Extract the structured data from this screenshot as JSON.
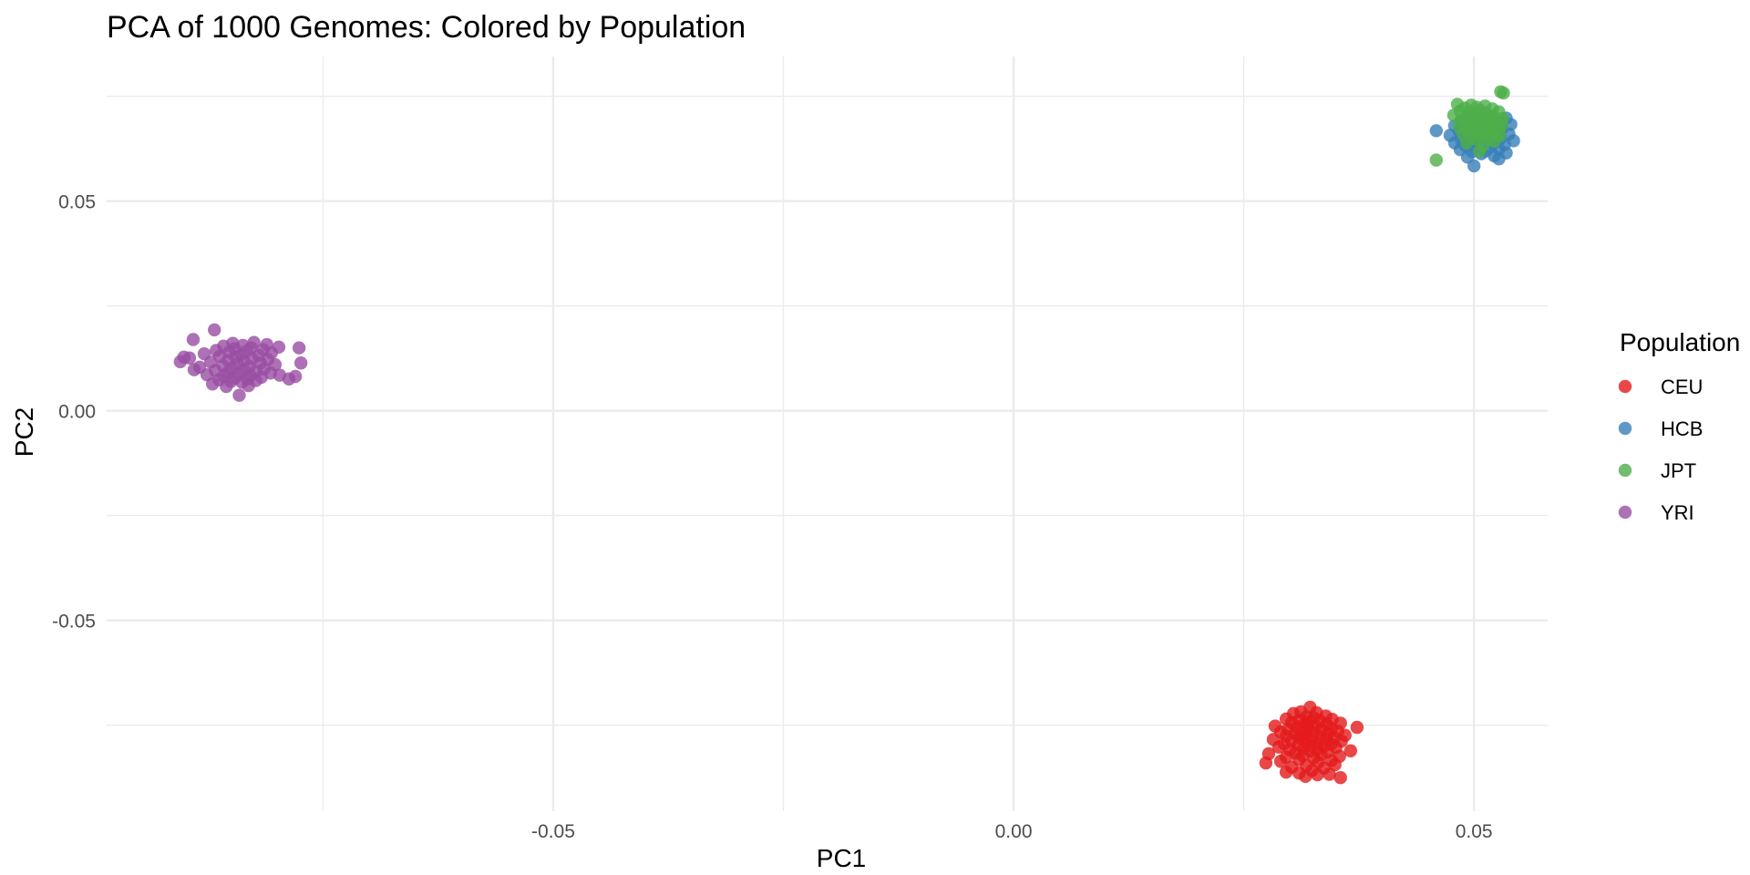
{
  "chart_data": {
    "type": "scatter",
    "title": "PCA of 1000 Genomes: Colored by Population",
    "xlabel": "PC1",
    "ylabel": "PC2",
    "xlim": [
      -0.0985,
      0.058
    ],
    "ylim": [
      -0.0955,
      0.0845
    ],
    "x_major_ticks": [
      -0.05,
      0.0,
      0.05
    ],
    "x_minor_ticks": [
      -0.075,
      -0.025,
      0.025
    ],
    "x_tick_labels": [
      "-0.05",
      "0.00",
      "0.05"
    ],
    "y_major_ticks": [
      -0.05,
      0.0,
      0.05
    ],
    "y_minor_ticks": [
      -0.075,
      -0.025,
      0.025,
      0.075
    ],
    "y_tick_labels": [
      "-0.05",
      "0.00",
      "0.05"
    ],
    "grid": true,
    "legend": {
      "title": "Population",
      "position": "right"
    },
    "series": [
      {
        "name": "CEU",
        "color": "#e41a1c",
        "points": [
          [
            0.0322,
            -0.0707
          ],
          [
            0.0312,
            -0.0718
          ],
          [
            0.0329,
            -0.072
          ],
          [
            0.0304,
            -0.0722
          ],
          [
            0.0339,
            -0.0728
          ],
          [
            0.0318,
            -0.073
          ],
          [
            0.0326,
            -0.0732
          ],
          [
            0.0296,
            -0.0735
          ],
          [
            0.0346,
            -0.0736
          ],
          [
            0.031,
            -0.0738
          ],
          [
            0.0333,
            -0.074
          ],
          [
            0.032,
            -0.0742
          ],
          [
            0.0302,
            -0.0744
          ],
          [
            0.0355,
            -0.0745
          ],
          [
            0.0316,
            -0.0747
          ],
          [
            0.034,
            -0.0748
          ],
          [
            0.0284,
            -0.0752
          ],
          [
            0.0328,
            -0.0752
          ],
          [
            0.0308,
            -0.0754
          ],
          [
            0.0373,
            -0.0755
          ],
          [
            0.032,
            -0.0757
          ],
          [
            0.0345,
            -0.0758
          ],
          [
            0.0298,
            -0.076
          ],
          [
            0.0334,
            -0.0761
          ],
          [
            0.0313,
            -0.0763
          ],
          [
            0.0352,
            -0.0764
          ],
          [
            0.029,
            -0.0766
          ],
          [
            0.0326,
            -0.0767
          ],
          [
            0.0306,
            -0.077
          ],
          [
            0.0341,
            -0.0771
          ],
          [
            0.0318,
            -0.0772
          ],
          [
            0.036,
            -0.0774
          ],
          [
            0.0296,
            -0.0776
          ],
          [
            0.0333,
            -0.0777
          ],
          [
            0.031,
            -0.0779
          ],
          [
            0.0348,
            -0.078
          ],
          [
            0.0324,
            -0.0782
          ],
          [
            0.0282,
            -0.0784
          ],
          [
            0.0339,
            -0.0785
          ],
          [
            0.0302,
            -0.0787
          ],
          [
            0.0356,
            -0.0788
          ],
          [
            0.0317,
            -0.079
          ],
          [
            0.033,
            -0.0792
          ],
          [
            0.0294,
            -0.0794
          ],
          [
            0.0345,
            -0.0795
          ],
          [
            0.0309,
            -0.0797
          ],
          [
            0.0323,
            -0.0799
          ],
          [
            0.0337,
            -0.08
          ],
          [
            0.0288,
            -0.0802
          ],
          [
            0.035,
            -0.0803
          ],
          [
            0.0315,
            -0.0805
          ],
          [
            0.033,
            -0.0807
          ],
          [
            0.03,
            -0.0809
          ],
          [
            0.0366,
            -0.0811
          ],
          [
            0.0322,
            -0.0812
          ],
          [
            0.0341,
            -0.0814
          ],
          [
            0.0306,
            -0.0816
          ],
          [
            0.0277,
            -0.0818
          ],
          [
            0.0334,
            -0.082
          ],
          [
            0.0314,
            -0.0822
          ],
          [
            0.0354,
            -0.0824
          ],
          [
            0.0296,
            -0.0826
          ],
          [
            0.0326,
            -0.0828
          ],
          [
            0.031,
            -0.0832
          ],
          [
            0.0345,
            -0.0834
          ],
          [
            0.029,
            -0.0836
          ],
          [
            0.0331,
            -0.0838
          ],
          [
            0.0274,
            -0.084
          ],
          [
            0.0349,
            -0.0844
          ],
          [
            0.0318,
            -0.0846
          ],
          [
            0.0302,
            -0.085
          ],
          [
            0.0337,
            -0.0852
          ],
          [
            0.0324,
            -0.0858
          ],
          [
            0.031,
            -0.0864
          ],
          [
            0.0343,
            -0.0867
          ],
          [
            0.0317,
            -0.0872
          ],
          [
            0.0355,
            -0.0875
          ],
          [
            0.033,
            -0.0868
          ],
          [
            0.0296,
            -0.0862
          ],
          [
            0.0314,
            -0.078
          ]
        ]
      },
      {
        "name": "HCB",
        "color": "#377eb8",
        "points": [
          [
            0.0535,
            0.0698
          ],
          [
            0.0518,
            0.0696
          ],
          [
            0.05,
            0.0694
          ],
          [
            0.0486,
            0.0692
          ],
          [
            0.0527,
            0.069
          ],
          [
            0.051,
            0.0688
          ],
          [
            0.0494,
            0.0685
          ],
          [
            0.054,
            0.0683
          ],
          [
            0.0479,
            0.068
          ],
          [
            0.052,
            0.0679
          ],
          [
            0.0504,
            0.0677
          ],
          [
            0.0489,
            0.0675
          ],
          [
            0.053,
            0.0672
          ],
          [
            0.0514,
            0.0671
          ],
          [
            0.0498,
            0.0669
          ],
          [
            0.0459,
            0.0668
          ],
          [
            0.0484,
            0.0666
          ],
          [
            0.0524,
            0.0664
          ],
          [
            0.0508,
            0.0662
          ],
          [
            0.0538,
            0.066
          ],
          [
            0.0492,
            0.0659
          ],
          [
            0.0474,
            0.0657
          ],
          [
            0.0516,
            0.0655
          ],
          [
            0.0501,
            0.0652
          ],
          [
            0.0529,
            0.065
          ],
          [
            0.0486,
            0.0648
          ],
          [
            0.051,
            0.0646
          ],
          [
            0.0543,
            0.0644
          ],
          [
            0.0495,
            0.0642
          ],
          [
            0.0522,
            0.064
          ],
          [
            0.0479,
            0.0639
          ],
          [
            0.0506,
            0.0637
          ],
          [
            0.0533,
            0.0635
          ],
          [
            0.0491,
            0.0632
          ],
          [
            0.0518,
            0.063
          ],
          [
            0.0502,
            0.0628
          ],
          [
            0.0527,
            0.0625
          ],
          [
            0.0485,
            0.0623
          ],
          [
            0.0513,
            0.062
          ],
          [
            0.0498,
            0.0618
          ],
          [
            0.0535,
            0.0615
          ],
          [
            0.0508,
            0.0613
          ],
          [
            0.0522,
            0.0608
          ],
          [
            0.0493,
            0.0605
          ],
          [
            0.0527,
            0.0601
          ],
          [
            0.05,
            0.0584
          ],
          [
            0.0512,
            0.0702
          ],
          [
            0.0495,
            0.07
          ]
        ]
      },
      {
        "name": "JPT",
        "color": "#4daf4a",
        "points": [
          [
            0.0529,
            0.0761
          ],
          [
            0.0532,
            0.0758
          ],
          [
            0.0482,
            0.0731
          ],
          [
            0.0497,
            0.0729
          ],
          [
            0.0512,
            0.0727
          ],
          [
            0.0503,
            0.0724
          ],
          [
            0.049,
            0.0722
          ],
          [
            0.052,
            0.072
          ],
          [
            0.0507,
            0.0717
          ],
          [
            0.0485,
            0.0715
          ],
          [
            0.0527,
            0.0713
          ],
          [
            0.0496,
            0.0711
          ],
          [
            0.0513,
            0.0709
          ],
          [
            0.0503,
            0.0707
          ],
          [
            0.0478,
            0.0705
          ],
          [
            0.0521,
            0.0703
          ],
          [
            0.0492,
            0.0701
          ],
          [
            0.0509,
            0.0699
          ],
          [
            0.0531,
            0.0697
          ],
          [
            0.0498,
            0.0695
          ],
          [
            0.0516,
            0.0693
          ],
          [
            0.0486,
            0.0691
          ],
          [
            0.0505,
            0.0689
          ],
          [
            0.0524,
            0.0687
          ],
          [
            0.0494,
            0.0685
          ],
          [
            0.0512,
            0.0683
          ],
          [
            0.053,
            0.0681
          ],
          [
            0.05,
            0.0679
          ],
          [
            0.0484,
            0.0677
          ],
          [
            0.0518,
            0.0675
          ],
          [
            0.0506,
            0.0673
          ],
          [
            0.0527,
            0.0671
          ],
          [
            0.0492,
            0.0669
          ],
          [
            0.0514,
            0.0667
          ],
          [
            0.0501,
            0.0665
          ],
          [
            0.0522,
            0.0663
          ],
          [
            0.0488,
            0.0661
          ],
          [
            0.051,
            0.0659
          ],
          [
            0.0528,
            0.0656
          ],
          [
            0.0497,
            0.0653
          ],
          [
            0.0516,
            0.065
          ],
          [
            0.0503,
            0.0647
          ],
          [
            0.0522,
            0.0643
          ],
          [
            0.0492,
            0.0639
          ],
          [
            0.051,
            0.0633
          ],
          [
            0.0506,
            0.0619
          ],
          [
            0.0459,
            0.0598
          ],
          [
            0.0515,
            0.0688
          ]
        ]
      },
      {
        "name": "YRI",
        "color": "#984ea3",
        "points": [
          [
            -0.0868,
            0.0193
          ],
          [
            -0.0891,
            0.017
          ],
          [
            -0.0825,
            0.0163
          ],
          [
            -0.0848,
            0.0161
          ],
          [
            -0.0811,
            0.0158
          ],
          [
            -0.0837,
            0.0156
          ],
          [
            -0.0858,
            0.0154
          ],
          [
            -0.0798,
            0.0152
          ],
          [
            -0.0828,
            0.015
          ],
          [
            -0.0846,
            0.0148
          ],
          [
            -0.0815,
            0.0146
          ],
          [
            -0.0866,
            0.0144
          ],
          [
            -0.0833,
            0.0142
          ],
          [
            -0.0852,
            0.014
          ],
          [
            -0.0806,
            0.0138
          ],
          [
            -0.0879,
            0.0136
          ],
          [
            -0.0839,
            0.0134
          ],
          [
            -0.082,
            0.0132
          ],
          [
            -0.0862,
            0.013
          ],
          [
            -0.0845,
            0.0128
          ],
          [
            -0.0895,
            0.0126
          ],
          [
            -0.0827,
            0.0124
          ],
          [
            -0.081,
            0.0122
          ],
          [
            -0.0853,
            0.012
          ],
          [
            -0.0836,
            0.0118
          ],
          [
            -0.0872,
            0.0116
          ],
          [
            -0.0818,
            0.0114
          ],
          [
            -0.0843,
            0.0112
          ],
          [
            -0.0802,
            0.011
          ],
          [
            -0.0859,
            0.0108
          ],
          [
            -0.083,
            0.0106
          ],
          [
            -0.0884,
            0.0104
          ],
          [
            -0.0849,
            0.0102
          ],
          [
            -0.0814,
            0.01
          ],
          [
            -0.0836,
            0.0098
          ],
          [
            -0.0867,
            0.0096
          ],
          [
            -0.0823,
            0.0094
          ],
          [
            -0.0853,
            0.0092
          ],
          [
            -0.0807,
            0.009
          ],
          [
            -0.0841,
            0.0088
          ],
          [
            -0.0876,
            0.0086
          ],
          [
            -0.0829,
            0.0084
          ],
          [
            -0.0858,
            0.0082
          ],
          [
            -0.0817,
            0.008
          ],
          [
            -0.0846,
            0.0078
          ],
          [
            -0.0832,
            0.0076
          ],
          [
            -0.0863,
            0.0074
          ],
          [
            -0.0823,
            0.0072
          ],
          [
            -0.085,
            0.007
          ],
          [
            -0.0838,
            0.0068
          ],
          [
            -0.087,
            0.0064
          ],
          [
            -0.0831,
            0.006
          ],
          [
            -0.0855,
            0.0058
          ],
          [
            -0.0787,
            0.0076
          ],
          [
            -0.078,
            0.0082
          ],
          [
            -0.0797,
            0.0085
          ],
          [
            -0.0776,
            0.015
          ],
          [
            -0.0774,
            0.0114
          ],
          [
            -0.0901,
            0.0128
          ],
          [
            -0.0905,
            0.0117
          ],
          [
            -0.089,
            0.0098
          ],
          [
            -0.0841,
            0.0037
          ]
        ]
      }
    ]
  }
}
